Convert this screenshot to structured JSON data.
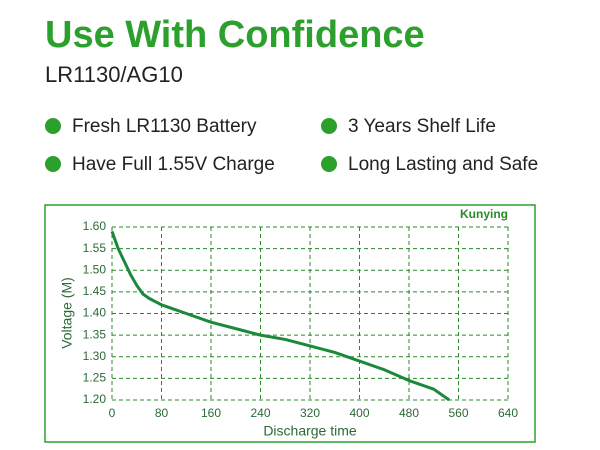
{
  "header": {
    "title": "Use With Confidence",
    "subtitle": "LR1130/AG10"
  },
  "features": [
    "Fresh LR1130 Battery",
    "3 Years Shelf Life",
    "Have Full 1.55V Charge",
    "Long Lasting and Safe"
  ],
  "chart_data": {
    "type": "line",
    "brand": "Kunying",
    "x_label": "Discharge time",
    "y_label": "Voltage (M)",
    "x": [
      0,
      5,
      10,
      20,
      30,
      40,
      50,
      60,
      80,
      100,
      120,
      160,
      200,
      240,
      280,
      320,
      360,
      400,
      440,
      480,
      520,
      545
    ],
    "values": [
      1.59,
      1.57,
      1.55,
      1.52,
      1.49,
      1.465,
      1.445,
      1.435,
      1.42,
      1.41,
      1.4,
      1.38,
      1.365,
      1.35,
      1.34,
      1.325,
      1.31,
      1.29,
      1.27,
      1.245,
      1.225,
      1.2
    ],
    "color": "#1a8a3a",
    "xlim": [
      0,
      640
    ],
    "xticks": [
      0,
      80,
      160,
      240,
      320,
      400,
      480,
      560,
      640
    ],
    "ylim": [
      1.2,
      1.6
    ],
    "yticks": [
      {
        "value": 1.2,
        "label": "1.20"
      },
      {
        "value": 1.25,
        "label": "1.25"
      },
      {
        "value": 1.3,
        "label": "1.30"
      },
      {
        "value": 1.35,
        "label": "1.35"
      },
      {
        "value": 1.4,
        "label": "1.40"
      },
      {
        "value": 1.45,
        "label": "1.45"
      },
      {
        "value": 1.5,
        "label": "1.50"
      },
      {
        "value": 1.55,
        "label": "1.55"
      },
      {
        "value": 1.6,
        "label": "1.60"
      }
    ],
    "grid": true
  }
}
